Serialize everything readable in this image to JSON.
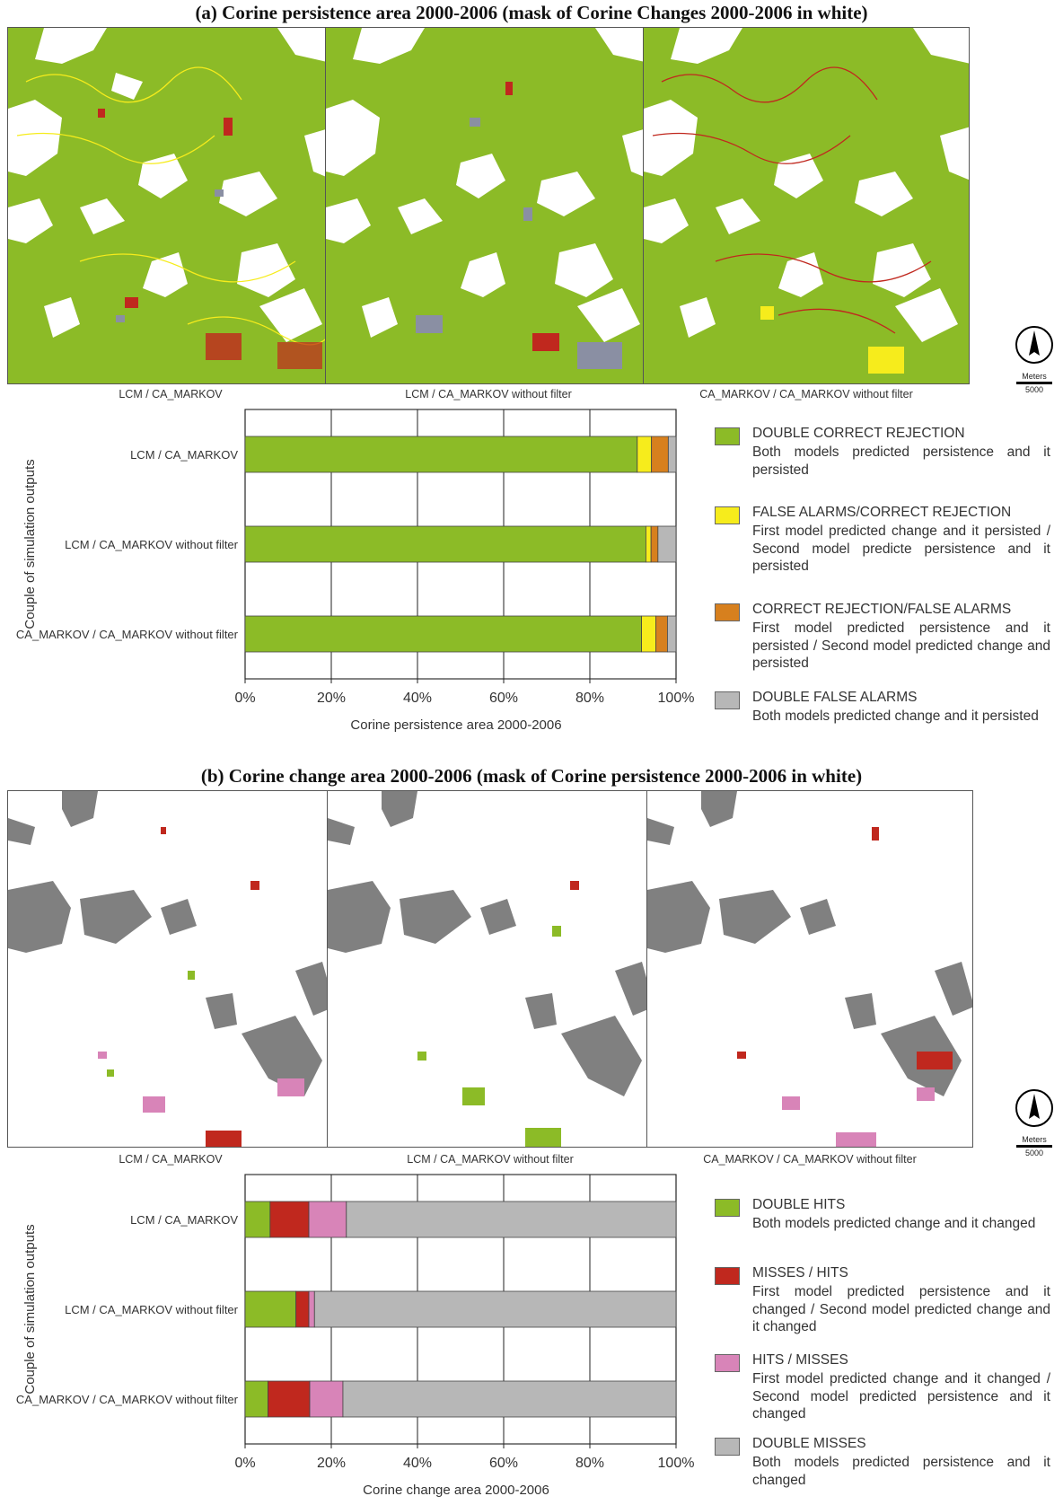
{
  "section_a": {
    "title": "(a) Corine persistence area 2000-2006 (mask of Corine Changes 2000-2006 in white)",
    "map_captions": [
      "LCM / CA_MARKOV",
      "LCM / CA_MARKOV without filter",
      "CA_MARKOV / CA_MARKOV without filter"
    ],
    "scale": {
      "unit": "Meters",
      "value": "5000"
    },
    "legend": [
      {
        "title": "DOUBLE CORRECT REJECTION",
        "desc": "Both models predicted persistence and it persisted",
        "color": "#8cbb27"
      },
      {
        "title": "FALSE ALARMS/CORRECT REJECTION",
        "desc": "First model predicted change and it persisted / Second model predicte persistence and it persisted",
        "color": "#f6ec1c"
      },
      {
        "title": "CORRECT REJECTION/FALSE ALARMS",
        "desc": "First model predicted persistence and it persisted / Second model predicted change and persisted",
        "color": "#d7801e"
      },
      {
        "title": "DOUBLE FALSE ALARMS",
        "desc": "Both models predicted change and it persisted",
        "color": "#b7b7b7"
      }
    ]
  },
  "section_b": {
    "title": "(b) Corine change area 2000-2006 (mask of Corine persistence 2000-2006 in white)",
    "map_captions": [
      "LCM / CA_MARKOV",
      "LCM / CA_MARKOV without filter",
      "CA_MARKOV / CA_MARKOV without filter"
    ],
    "scale": {
      "unit": "Meters",
      "value": "5000"
    },
    "legend": [
      {
        "title": "DOUBLE HITS",
        "desc": "Both models predicted change and it changed",
        "color": "#8cbb27"
      },
      {
        "title": "MISSES / HITS",
        "desc": "First model predicted persistence and it changed / Second model predicted change and it changed",
        "color": "#c0281e"
      },
      {
        "title": "HITS / MISSES",
        "desc": "First model predicted change and it changed / Second model predicted persistence and it changed",
        "color": "#d884b8"
      },
      {
        "title": "DOUBLE MISSES",
        "desc": "Both models predicted persistence and it changed",
        "color": "#b7b7b7"
      }
    ]
  },
  "chart_data": [
    {
      "type": "bar",
      "orientation": "horizontal",
      "stacked": true,
      "title": "",
      "xlabel": "Corine persistence area 2000-2006",
      "ylabel": "Couple of simulation outputs",
      "xlim": [
        0,
        100
      ],
      "xticks": [
        "0%",
        "20%",
        "40%",
        "60%",
        "80%",
        "100%"
      ],
      "categories": [
        "LCM / CA_MARKOV",
        "LCM / CA_MARKOV without filter",
        "CA_MARKOV / CA_MARKOV without filter"
      ],
      "series": [
        {
          "name": "DOUBLE CORRECT REJECTION",
          "color": "#8cbb27",
          "values": [
            91,
            93,
            92
          ]
        },
        {
          "name": "FALSE ALARMS/CORRECT REJECTION",
          "color": "#f6ec1c",
          "values": [
            3.3,
            1.2,
            3.3
          ]
        },
        {
          "name": "CORRECT REJECTION/FALSE ALARMS",
          "color": "#d7801e",
          "values": [
            3.9,
            1.6,
            2.7
          ]
        },
        {
          "name": "DOUBLE FALSE ALARMS",
          "color": "#b7b7b7",
          "values": [
            1.8,
            4.2,
            2.0
          ]
        }
      ],
      "grid": true,
      "legend": "right"
    },
    {
      "type": "bar",
      "orientation": "horizontal",
      "stacked": true,
      "title": "",
      "xlabel": "Corine change area 2000-2006",
      "ylabel": "Couple of simulation outputs",
      "xlim": [
        0,
        100
      ],
      "xticks": [
        "0%",
        "20%",
        "40%",
        "60%",
        "80%",
        "100%"
      ],
      "categories": [
        "LCM / CA_MARKOV",
        "LCM / CA_MARKOV without filter",
        "CA_MARKOV / CA_MARKOV without filter"
      ],
      "series": [
        {
          "name": "DOUBLE HITS",
          "color": "#8cbb27",
          "values": [
            5.8,
            11.8,
            5.3
          ]
        },
        {
          "name": "MISSES / HITS",
          "color": "#c0281e",
          "values": [
            9.0,
            3.0,
            9.7
          ]
        },
        {
          "name": "HITS / MISSES",
          "color": "#d884b8",
          "values": [
            8.7,
            1.3,
            7.7
          ]
        },
        {
          "name": "DOUBLE MISSES",
          "color": "#b7b7b7",
          "values": [
            76.5,
            83.9,
            77.3
          ]
        }
      ],
      "grid": true,
      "legend": "right"
    }
  ]
}
